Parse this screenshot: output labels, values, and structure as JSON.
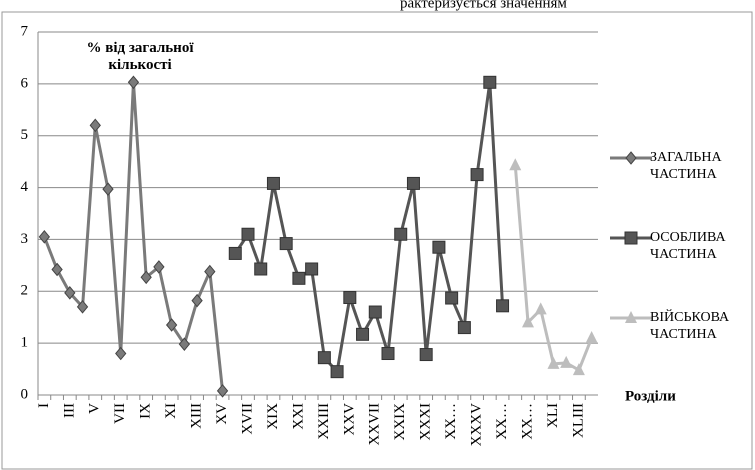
{
  "chart_data": {
    "type": "line",
    "header_text": "рактеризується значенням",
    "y_axis_title": "% від загальної кількості",
    "x_axis_title": "Розділи",
    "categories": [
      "I",
      null,
      "III",
      null,
      "V",
      null,
      "VII",
      null,
      "IX",
      null,
      "XI",
      null,
      "XIII",
      null,
      "XV",
      null,
      "XVII",
      null,
      "XIX",
      null,
      "XXI",
      null,
      "XXIII",
      null,
      "XXV",
      null,
      "XXVII",
      null,
      "XXIX",
      null,
      "XXXI",
      null,
      "XX…",
      null,
      "XXXV",
      null,
      "XX…",
      null,
      "XX…",
      null,
      "XLI",
      null,
      "XLIII",
      null
    ],
    "series": [
      {
        "name": "ЗАГАЛЬНА ЧАСТИНА",
        "color": "#7a7a7a",
        "marker": "diamond",
        "values": [
          3.05,
          2.42,
          1.97,
          1.7,
          5.2,
          3.97,
          0.8,
          6.03,
          2.27,
          2.47,
          1.35,
          0.98,
          1.82,
          2.38,
          0.08,
          null,
          null,
          null,
          null,
          null,
          null,
          null,
          null,
          null,
          null,
          null,
          null,
          null,
          null,
          null,
          null,
          null,
          null,
          null,
          null,
          null,
          null,
          null,
          null,
          null,
          null,
          null,
          null,
          null
        ]
      },
      {
        "name": "ОСОБЛИВА ЧАСТИНА",
        "color": "#555555",
        "marker": "square",
        "values": [
          null,
          null,
          null,
          null,
          null,
          null,
          null,
          null,
          null,
          null,
          null,
          null,
          null,
          null,
          null,
          2.73,
          3.1,
          2.43,
          4.08,
          2.92,
          2.25,
          2.43,
          0.72,
          0.45,
          1.88,
          1.17,
          1.6,
          0.8,
          3.1,
          4.08,
          0.78,
          2.85,
          1.87,
          1.3,
          4.25,
          6.03,
          1.72,
          null,
          null,
          null,
          null,
          null,
          null,
          null
        ]
      },
      {
        "name": "ВІЙСЬКОВА ЧАСТИНА",
        "color": "#bdbdbd",
        "marker": "triangle",
        "values": [
          null,
          null,
          null,
          null,
          null,
          null,
          null,
          null,
          null,
          null,
          null,
          null,
          null,
          null,
          null,
          null,
          null,
          null,
          null,
          null,
          null,
          null,
          null,
          null,
          null,
          null,
          null,
          null,
          null,
          null,
          null,
          null,
          null,
          null,
          null,
          null,
          null,
          4.43,
          1.4,
          1.65,
          0.6,
          0.62,
          0.48,
          1.1
        ]
      }
    ],
    "ylim": [
      0,
      7
    ],
    "yticks": [
      0,
      1,
      2,
      3,
      4,
      5,
      6,
      7
    ],
    "grid": true,
    "legend": "right"
  }
}
